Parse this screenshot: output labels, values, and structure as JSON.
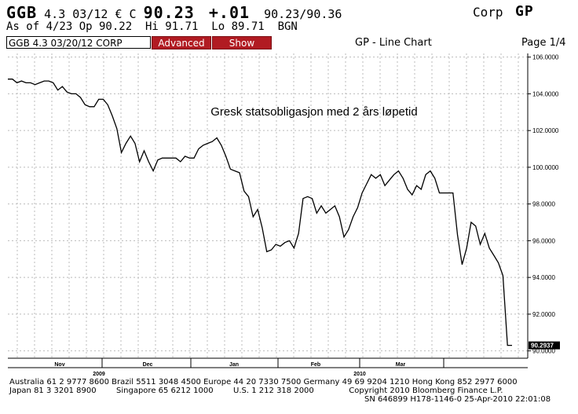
{
  "header": {
    "ticker": "GGB",
    "coupon_maturity": "4.3 03/12 € C",
    "price": "90.23",
    "change": "+.01",
    "bid_ask": "90.23/90.36",
    "as_of": "As of 4/23 Op 90.22  Hi 91.71  Lo 89.71  BGN",
    "market_sector": "Corp",
    "function": "GP"
  },
  "toolbar": {
    "security": "GGB 4.3 03/20/12 CORP",
    "advanced_label": "Advanced",
    "show_label": "Show",
    "chart_kind": "GP - Line Chart",
    "page": "Page 1/4"
  },
  "footer": {
    "line1": "Australia 61 2 9777 8600 Brazil 5511 3048 4500 Europe 44 20 7330 7500 Germany 49 69 9204 1210 Hong Kong 852 2977 6000",
    "line2": "Japan 81 3 3201 8900        Singapore 65 6212 1000        U.S. 1 212 318 2000              Copyright 2010 Bloomberg Finance L.P.",
    "line3": "SN 646899 H178-1146-0 25-Apr-2010 22:01:08"
  },
  "colors": {
    "line": "#000000",
    "grid": "#bbbbbb",
    "button": "#b11b22"
  },
  "chart_data": {
    "type": "line",
    "title": "Gresk statsobligasjon med 2 års løpetid",
    "ylim": [
      89.6,
      106.2
    ],
    "yticks": [
      90,
      92,
      94,
      96,
      98,
      100,
      102,
      104,
      106
    ],
    "ytick_labels": [
      "90.0000",
      "92.0000",
      "94.0000",
      "96.0000",
      "98.0000",
      "100.0000",
      "102.0000",
      "104.0000",
      "106.0000"
    ],
    "x_month_labels": [
      "Nov",
      "Dec",
      "Jan",
      "Feb",
      "Mar"
    ],
    "x_year_labels": [
      "2009",
      "2010"
    ],
    "last_value_label": "90.2937",
    "grid": true,
    "series": [
      {
        "values": [
          104.8,
          104.8,
          104.6,
          104.7,
          104.6,
          104.6,
          104.5,
          104.6,
          104.7,
          104.7,
          104.6,
          104.2,
          104.4,
          104.1,
          104.0,
          104.0,
          103.8,
          103.4,
          103.3,
          103.3,
          103.7,
          103.7,
          103.4,
          102.8,
          102.1,
          100.8,
          101.3,
          101.7,
          101.3,
          100.3,
          100.9,
          100.3,
          99.8,
          100.4,
          100.5,
          100.5,
          100.5,
          100.5,
          100.3,
          100.6,
          100.5,
          100.5,
          101.0,
          101.2,
          101.3,
          101.4,
          101.6,
          101.2,
          100.6,
          99.9,
          99.8,
          99.7,
          98.7,
          98.4,
          97.3,
          97.7,
          96.7,
          95.4,
          95.5,
          95.8,
          95.7,
          95.9,
          96.0,
          95.6,
          96.4,
          98.3,
          98.4,
          98.3,
          97.5,
          97.9,
          97.5,
          97.7,
          97.9,
          97.3,
          96.2,
          96.6,
          97.3,
          97.8,
          98.6,
          99.1,
          99.6,
          99.4,
          99.6,
          99.0,
          99.3,
          99.6,
          99.8,
          99.4,
          98.8,
          98.5,
          99.0,
          98.8,
          99.6,
          99.8,
          99.4,
          98.6,
          98.6,
          98.6,
          98.6,
          96.3,
          94.7,
          95.6,
          97.0,
          96.8,
          95.8,
          96.4,
          95.6,
          95.2,
          94.8,
          94.1,
          90.3,
          90.3
        ]
      }
    ]
  }
}
